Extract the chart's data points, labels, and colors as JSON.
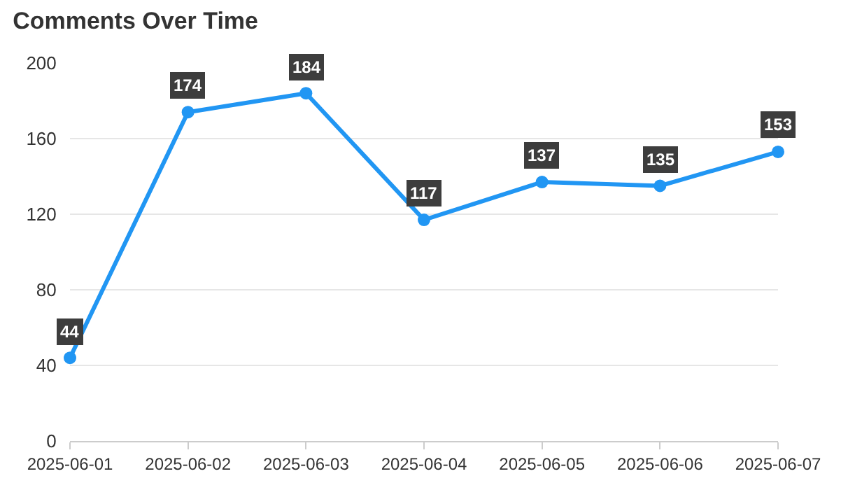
{
  "chart_data": {
    "type": "line",
    "title": "Comments Over Time",
    "categories": [
      "2025-06-01",
      "2025-06-02",
      "2025-06-03",
      "2025-06-04",
      "2025-06-05",
      "2025-06-06",
      "2025-06-07"
    ],
    "series": [
      {
        "color": "#2196f3",
        "values": [
          44,
          174,
          184,
          117,
          137,
          135,
          153
        ]
      }
    ],
    "ylim": [
      0,
      200
    ],
    "yticks": [
      0,
      40,
      80,
      120,
      160,
      200
    ],
    "grid": "y",
    "marker": "circle",
    "line_style": "solid",
    "data_labels": true
  }
}
